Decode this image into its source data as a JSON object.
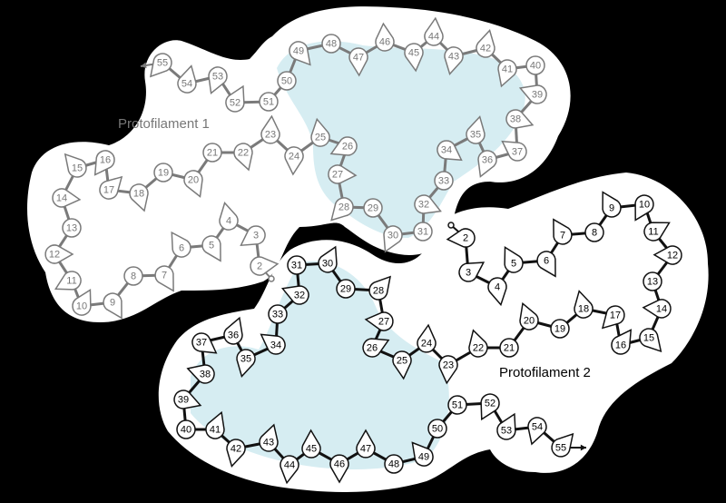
{
  "labels": {
    "protofilament_1": "Protofilament 1",
    "protofilament_2": "Protofilament 2"
  },
  "colors": {
    "background": "#000000",
    "cloud": "#ffffff",
    "core_fill": "#d6edf2",
    "pf1_stroke": "#7a7a7a",
    "pf1_text": "#777777",
    "pf2_stroke": "#111111",
    "pf2_text": "#000000"
  },
  "protofilament_1": {
    "residues": [
      {
        "n": "2",
        "shape": "pear"
      },
      {
        "n": "3",
        "shape": "pear"
      },
      {
        "n": "4",
        "shape": "pear"
      },
      {
        "n": "5",
        "shape": "pear"
      },
      {
        "n": "6",
        "shape": "pear"
      },
      {
        "n": "7",
        "shape": "pear"
      },
      {
        "n": "8",
        "shape": "circle"
      },
      {
        "n": "9",
        "shape": "pear"
      },
      {
        "n": "10",
        "shape": "pear"
      },
      {
        "n": "11",
        "shape": "pear"
      },
      {
        "n": "12",
        "shape": "pear"
      },
      {
        "n": "13",
        "shape": "circle"
      },
      {
        "n": "14",
        "shape": "pear"
      },
      {
        "n": "15",
        "shape": "pear"
      },
      {
        "n": "16",
        "shape": "pear"
      },
      {
        "n": "17",
        "shape": "pear"
      },
      {
        "n": "18",
        "shape": "pear"
      },
      {
        "n": "19",
        "shape": "circle"
      },
      {
        "n": "20",
        "shape": "pear"
      },
      {
        "n": "21",
        "shape": "circle"
      },
      {
        "n": "22",
        "shape": "pear"
      },
      {
        "n": "23",
        "shape": "pear"
      },
      {
        "n": "24",
        "shape": "pear"
      },
      {
        "n": "25",
        "shape": "pear"
      },
      {
        "n": "26",
        "shape": "pear"
      },
      {
        "n": "27",
        "shape": "pear"
      },
      {
        "n": "28",
        "shape": "pear"
      },
      {
        "n": "29",
        "shape": "circle"
      },
      {
        "n": "30",
        "shape": "pear"
      },
      {
        "n": "31",
        "shape": "circle"
      },
      {
        "n": "32",
        "shape": "pear"
      },
      {
        "n": "33",
        "shape": "circle"
      },
      {
        "n": "34",
        "shape": "pear"
      },
      {
        "n": "35",
        "shape": "pear"
      },
      {
        "n": "36",
        "shape": "pear"
      },
      {
        "n": "37",
        "shape": "pear"
      },
      {
        "n": "38",
        "shape": "pear"
      },
      {
        "n": "39",
        "shape": "pear"
      },
      {
        "n": "40",
        "shape": "circle"
      },
      {
        "n": "41",
        "shape": "pear"
      },
      {
        "n": "42",
        "shape": "pear"
      },
      {
        "n": "43",
        "shape": "pear"
      },
      {
        "n": "44",
        "shape": "pear"
      },
      {
        "n": "45",
        "shape": "pear"
      },
      {
        "n": "46",
        "shape": "pear"
      },
      {
        "n": "47",
        "shape": "pear"
      },
      {
        "n": "48",
        "shape": "circle"
      },
      {
        "n": "49",
        "shape": "pear"
      },
      {
        "n": "50",
        "shape": "circle"
      },
      {
        "n": "51",
        "shape": "circle"
      },
      {
        "n": "52",
        "shape": "pear"
      },
      {
        "n": "53",
        "shape": "pear"
      },
      {
        "n": "54",
        "shape": "pear"
      },
      {
        "n": "55",
        "shape": "pear"
      }
    ]
  },
  "protofilament_2": {
    "residues": [
      {
        "n": "2",
        "shape": "pear"
      },
      {
        "n": "3",
        "shape": "pear"
      },
      {
        "n": "4",
        "shape": "pear"
      },
      {
        "n": "5",
        "shape": "pear"
      },
      {
        "n": "6",
        "shape": "pear"
      },
      {
        "n": "7",
        "shape": "pear"
      },
      {
        "n": "8",
        "shape": "circle"
      },
      {
        "n": "9",
        "shape": "pear"
      },
      {
        "n": "10",
        "shape": "pear"
      },
      {
        "n": "11",
        "shape": "pear"
      },
      {
        "n": "12",
        "shape": "pear"
      },
      {
        "n": "13",
        "shape": "circle"
      },
      {
        "n": "14",
        "shape": "pear"
      },
      {
        "n": "15",
        "shape": "pear"
      },
      {
        "n": "16",
        "shape": "pear"
      },
      {
        "n": "17",
        "shape": "pear"
      },
      {
        "n": "18",
        "shape": "pear"
      },
      {
        "n": "19",
        "shape": "circle"
      },
      {
        "n": "20",
        "shape": "pear"
      },
      {
        "n": "21",
        "shape": "circle"
      },
      {
        "n": "22",
        "shape": "pear"
      },
      {
        "n": "23",
        "shape": "pear"
      },
      {
        "n": "24",
        "shape": "pear"
      },
      {
        "n": "25",
        "shape": "pear"
      },
      {
        "n": "26",
        "shape": "pear"
      },
      {
        "n": "27",
        "shape": "pear"
      },
      {
        "n": "28",
        "shape": "pear"
      },
      {
        "n": "29",
        "shape": "circle"
      },
      {
        "n": "30",
        "shape": "pear"
      },
      {
        "n": "31",
        "shape": "circle"
      },
      {
        "n": "32",
        "shape": "pear"
      },
      {
        "n": "33",
        "shape": "circle"
      },
      {
        "n": "34",
        "shape": "pear"
      },
      {
        "n": "35",
        "shape": "pear"
      },
      {
        "n": "36",
        "shape": "pear"
      },
      {
        "n": "37",
        "shape": "pear"
      },
      {
        "n": "38",
        "shape": "pear"
      },
      {
        "n": "39",
        "shape": "pear"
      },
      {
        "n": "40",
        "shape": "circle"
      },
      {
        "n": "41",
        "shape": "pear"
      },
      {
        "n": "42",
        "shape": "pear"
      },
      {
        "n": "43",
        "shape": "pear"
      },
      {
        "n": "44",
        "shape": "pear"
      },
      {
        "n": "45",
        "shape": "pear"
      },
      {
        "n": "46",
        "shape": "pear"
      },
      {
        "n": "47",
        "shape": "pear"
      },
      {
        "n": "48",
        "shape": "circle"
      },
      {
        "n": "49",
        "shape": "pear"
      },
      {
        "n": "50",
        "shape": "circle"
      },
      {
        "n": "51",
        "shape": "circle"
      },
      {
        "n": "52",
        "shape": "pear"
      },
      {
        "n": "53",
        "shape": "pear"
      },
      {
        "n": "54",
        "shape": "pear"
      },
      {
        "n": "55",
        "shape": "pear"
      }
    ]
  }
}
